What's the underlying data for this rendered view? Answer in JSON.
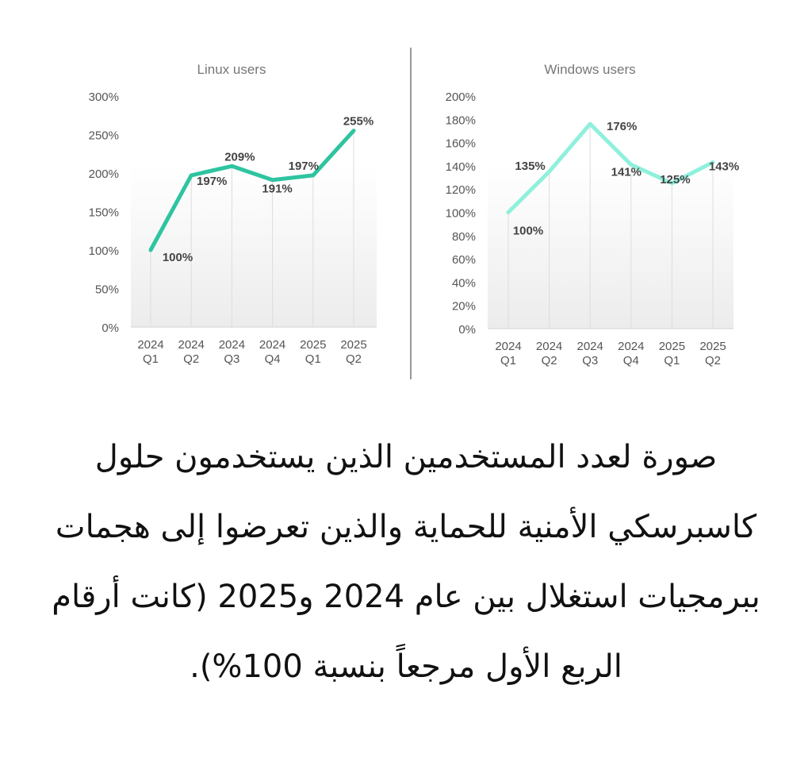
{
  "chart_data": [
    {
      "type": "line",
      "title": "Linux users",
      "categories": [
        "2024 Q1",
        "2024 Q2",
        "2024 Q3",
        "2024 Q4",
        "2025 Q1",
        "2025 Q2"
      ],
      "values": [
        100,
        197,
        209,
        191,
        197,
        255
      ],
      "data_labels": [
        "100%",
        "197%",
        "209%",
        "191%",
        "197%",
        "255%"
      ],
      "ylim": [
        0,
        300
      ],
      "yticks": [
        0,
        50,
        100,
        150,
        200,
        250,
        300
      ],
      "ytick_labels": [
        "0%",
        "50%",
        "100%",
        "150%",
        "200%",
        "250%",
        "300%"
      ],
      "color": "#2ec4a0",
      "grid": "vertical"
    },
    {
      "type": "line",
      "title": "Windows users",
      "categories": [
        "2024 Q1",
        "2024 Q2",
        "2024 Q3",
        "2024 Q4",
        "2025 Q1",
        "2025 Q2"
      ],
      "values": [
        100,
        135,
        176,
        141,
        125,
        143
      ],
      "data_labels": [
        "100%",
        "135%",
        "176%",
        "141%",
        "125%",
        "143%"
      ],
      "ylim": [
        0,
        200
      ],
      "yticks": [
        0,
        20,
        40,
        60,
        80,
        100,
        120,
        140,
        160,
        180,
        200
      ],
      "ytick_labels": [
        "0%",
        "20%",
        "40%",
        "60%",
        "80%",
        "100%",
        "120%",
        "140%",
        "160%",
        "180%",
        "200%"
      ],
      "color": "#8ff0dc",
      "grid": "vertical"
    }
  ],
  "caption": "صورة لعدد المستخدمين الذين يستخدمون حلول كاسبرسكي الأمنية للحماية والذين تعرضوا إلى هجمات ببرمجيات استغلال بين عام 2024 و2025 (كانت أرقام الربع الأول مرجعاً بنسبة 100%)."
}
